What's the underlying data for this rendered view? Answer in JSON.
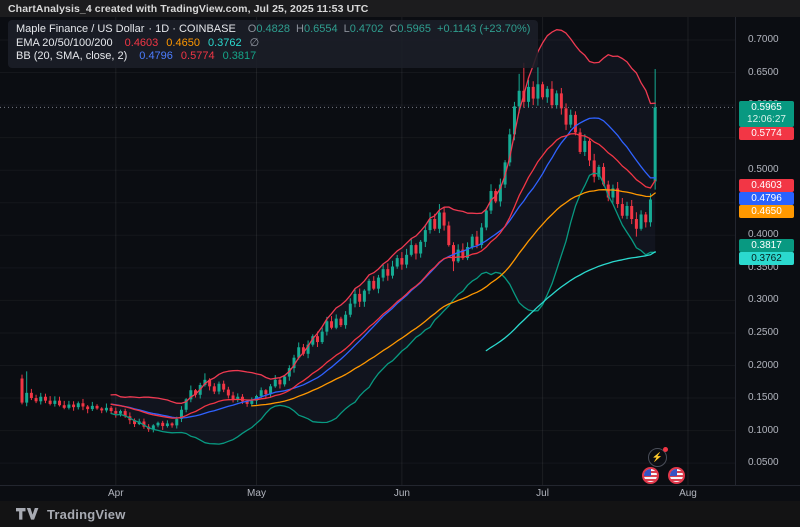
{
  "topbar": {
    "title": "ChartAnalysis_4 created with TradingView.com, Jul 25, 2025 11:53 UTC"
  },
  "legend": {
    "symbol": "Maple Finance / US Dollar",
    "interval_exchange": "· 1D · COINBASE",
    "ohlc": {
      "o_label": "O",
      "o": "0.4828",
      "h_label": "H",
      "h": "0.6554",
      "l_label": "L",
      "l": "0.4702",
      "c_label": "C",
      "c": "0.5965",
      "change": "+0.1143 (+23.70%)"
    },
    "ema": {
      "label": "EMA 20/50/100/200",
      "v20": "0.4603",
      "v50": "0.4650",
      "v100": "0.3762",
      "v200": "∅"
    },
    "bb": {
      "label": "BB (20, SMA, close, 2)",
      "basis": "0.4796",
      "upper": "0.5774",
      "lower": "0.3817"
    }
  },
  "price_axis": {
    "ticks": [
      "0.7000",
      "0.6500",
      "0.6000",
      "0.5500",
      "0.5000",
      "0.4500",
      "0.4000",
      "0.3500",
      "0.3000",
      "0.2500",
      "0.2000",
      "0.1500",
      "0.1000",
      "0.0500"
    ],
    "labels": {
      "last_price": "0.5965",
      "countdown": "12:06:27",
      "bb_upper": "0.5774",
      "ema20": "0.4603",
      "bb_basis": "0.4796",
      "ema50": "0.4650",
      "bb_lower": "0.3817",
      "ema100": "0.3762"
    }
  },
  "time_axis": {
    "labels": [
      "Apr",
      "May",
      "Jun",
      "Jul",
      "Aug"
    ]
  },
  "footer": {
    "brand": "TradingView"
  },
  "colors": {
    "up": "#16ab94",
    "down": "#f23645",
    "ema20": "#f23645",
    "ema50": "#ff9800",
    "ema100": "#2bd9ce",
    "bb_basis": "#2f62ff",
    "bb_upper": "#ef3a52",
    "bb_lower": "#089981",
    "bb_fill": "rgba(130,160,255,0.05)",
    "label_green": "#089981",
    "label_red": "#f23645",
    "label_blue": "#2962ff",
    "label_orange": "#ff9800",
    "label_teal": "#089981",
    "label_cyan": "#2bd9ce",
    "grid_v": "rgba(255,255,255,0.07)",
    "grid_h": "rgba(255,255,255,0.045)",
    "price_line": "#787b86"
  },
  "chart_data": {
    "type": "candlestick",
    "title": "Maple Finance / US Dollar",
    "interval": "1D",
    "exchange": "COINBASE",
    "xlabel_months": [
      "Apr",
      "May",
      "Jun",
      "Jul",
      "Aug"
    ],
    "month_start_indices": [
      20,
      50,
      81,
      111,
      142
    ],
    "ylim": [
      0.015,
      0.715
    ],
    "yticks": [
      0.7,
      0.65,
      0.6,
      0.55,
      0.5,
      0.45,
      0.4,
      0.35,
      0.3,
      0.25,
      0.2,
      0.15,
      0.1,
      0.05
    ],
    "grid": "faint",
    "current_price": 0.5965,
    "last_candle": {
      "o": 0.4828,
      "h": 0.6554,
      "l": 0.4702,
      "c": 0.5965,
      "change": "+0.1143 (+23.70%)"
    },
    "first_open": 0.18,
    "closes": [
      0.143,
      0.158,
      0.15,
      0.145,
      0.152,
      0.146,
      0.141,
      0.146,
      0.139,
      0.135,
      0.14,
      0.136,
      0.142,
      0.137,
      0.133,
      0.138,
      0.134,
      0.131,
      0.135,
      0.13,
      0.126,
      0.13,
      0.122,
      0.116,
      0.11,
      0.114,
      0.106,
      0.102,
      0.108,
      0.112,
      0.107,
      0.111,
      0.108,
      0.118,
      0.132,
      0.148,
      0.162,
      0.155,
      0.17,
      0.178,
      0.168,
      0.16,
      0.172,
      0.163,
      0.154,
      0.148,
      0.152,
      0.145,
      0.141,
      0.146,
      0.153,
      0.162,
      0.156,
      0.168,
      0.178,
      0.171,
      0.183,
      0.196,
      0.212,
      0.228,
      0.218,
      0.232,
      0.245,
      0.236,
      0.252,
      0.268,
      0.258,
      0.272,
      0.262,
      0.278,
      0.295,
      0.31,
      0.298,
      0.315,
      0.33,
      0.318,
      0.335,
      0.348,
      0.338,
      0.352,
      0.365,
      0.355,
      0.37,
      0.385,
      0.372,
      0.39,
      0.408,
      0.425,
      0.41,
      0.435,
      0.415,
      0.385,
      0.36,
      0.378,
      0.365,
      0.382,
      0.398,
      0.385,
      0.412,
      0.438,
      0.468,
      0.452,
      0.478,
      0.512,
      0.555,
      0.598,
      0.622,
      0.605,
      0.628,
      0.61,
      0.632,
      0.612,
      0.625,
      0.6,
      0.618,
      0.595,
      0.57,
      0.585,
      0.558,
      0.528,
      0.545,
      0.515,
      0.49,
      0.505,
      0.478,
      0.458,
      0.472,
      0.448,
      0.43,
      0.445,
      0.425,
      0.41,
      0.432,
      0.42,
      0.455,
      0.5965
    ],
    "wick_overrides": {
      "1": {
        "h": 0.191
      },
      "39": {
        "h": 0.188
      },
      "89": {
        "h": 0.448
      },
      "92": {
        "l": 0.345
      },
      "106": {
        "h": 0.648
      },
      "107": {
        "h": 0.665
      },
      "110": {
        "h": 0.658
      },
      "131": {
        "l": 0.398
      },
      "135": {
        "o": 0.4828,
        "h": 0.6554,
        "l": 0.4702
      }
    },
    "indicators": [
      {
        "name": "EMA 20",
        "last_value": 0.4603,
        "color_key": "ema20"
      },
      {
        "name": "EMA 50",
        "last_value": 0.465,
        "color_key": "ema50"
      },
      {
        "name": "EMA 100",
        "last_value": 0.3762,
        "color_key": "ema100"
      },
      {
        "name": "EMA 200",
        "last_value": null
      },
      {
        "name": "BB basis (SMA 20)",
        "last_value": 0.4796,
        "color_key": "bb_basis"
      },
      {
        "name": "BB upper",
        "last_value": 0.5774,
        "color_key": "bb_upper"
      },
      {
        "name": "BB lower",
        "last_value": 0.3817,
        "color_key": "bb_lower"
      }
    ]
  }
}
